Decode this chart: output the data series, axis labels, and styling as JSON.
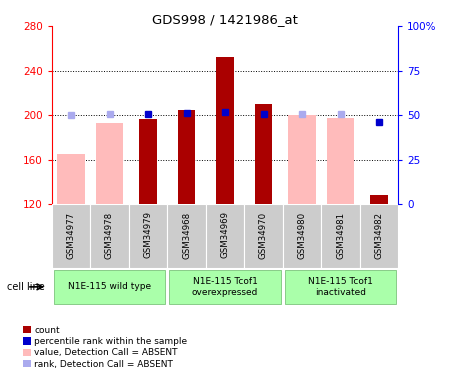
{
  "title": "GDS998 / 1421986_at",
  "samples": [
    "GSM34977",
    "GSM34978",
    "GSM34979",
    "GSM34968",
    "GSM34969",
    "GSM34970",
    "GSM34980",
    "GSM34981",
    "GSM34982"
  ],
  "count_values": [
    null,
    null,
    197,
    205,
    252,
    210,
    null,
    null,
    128
  ],
  "absent_values": [
    165,
    193,
    null,
    null,
    null,
    null,
    200,
    198,
    null
  ],
  "percentile_rank": [
    null,
    null,
    50.5,
    51.5,
    52.0,
    50.5,
    null,
    null,
    46.0
  ],
  "absent_rank": [
    50.0,
    51.0,
    null,
    null,
    null,
    null,
    51.0,
    51.0,
    null
  ],
  "ylim_left": [
    120,
    280
  ],
  "ylim_right": [
    0,
    100
  ],
  "yticks_left": [
    120,
    160,
    200,
    240,
    280
  ],
  "yticks_right": [
    0,
    25,
    50,
    75,
    100
  ],
  "color_count": "#aa0000",
  "color_absent_value": "#ffbbbb",
  "color_percentile": "#0000cc",
  "color_absent_rank": "#aaaaee",
  "bar_width": 0.45,
  "bg_plot": "#ffffff",
  "bg_label_row": "#cccccc",
  "group_defs": [
    {
      "start": 0,
      "end": 2,
      "label": "N1E-115 wild type"
    },
    {
      "start": 3,
      "end": 5,
      "label": "N1E-115 Tcof1\noverexpressed"
    },
    {
      "start": 6,
      "end": 8,
      "label": "N1E-115 Tcof1\ninactivated"
    }
  ],
  "group_color": "#aaffaa",
  "group_edge": "#88cc88",
  "legend_labels": [
    "count",
    "percentile rank within the sample",
    "value, Detection Call = ABSENT",
    "rank, Detection Call = ABSENT"
  ]
}
